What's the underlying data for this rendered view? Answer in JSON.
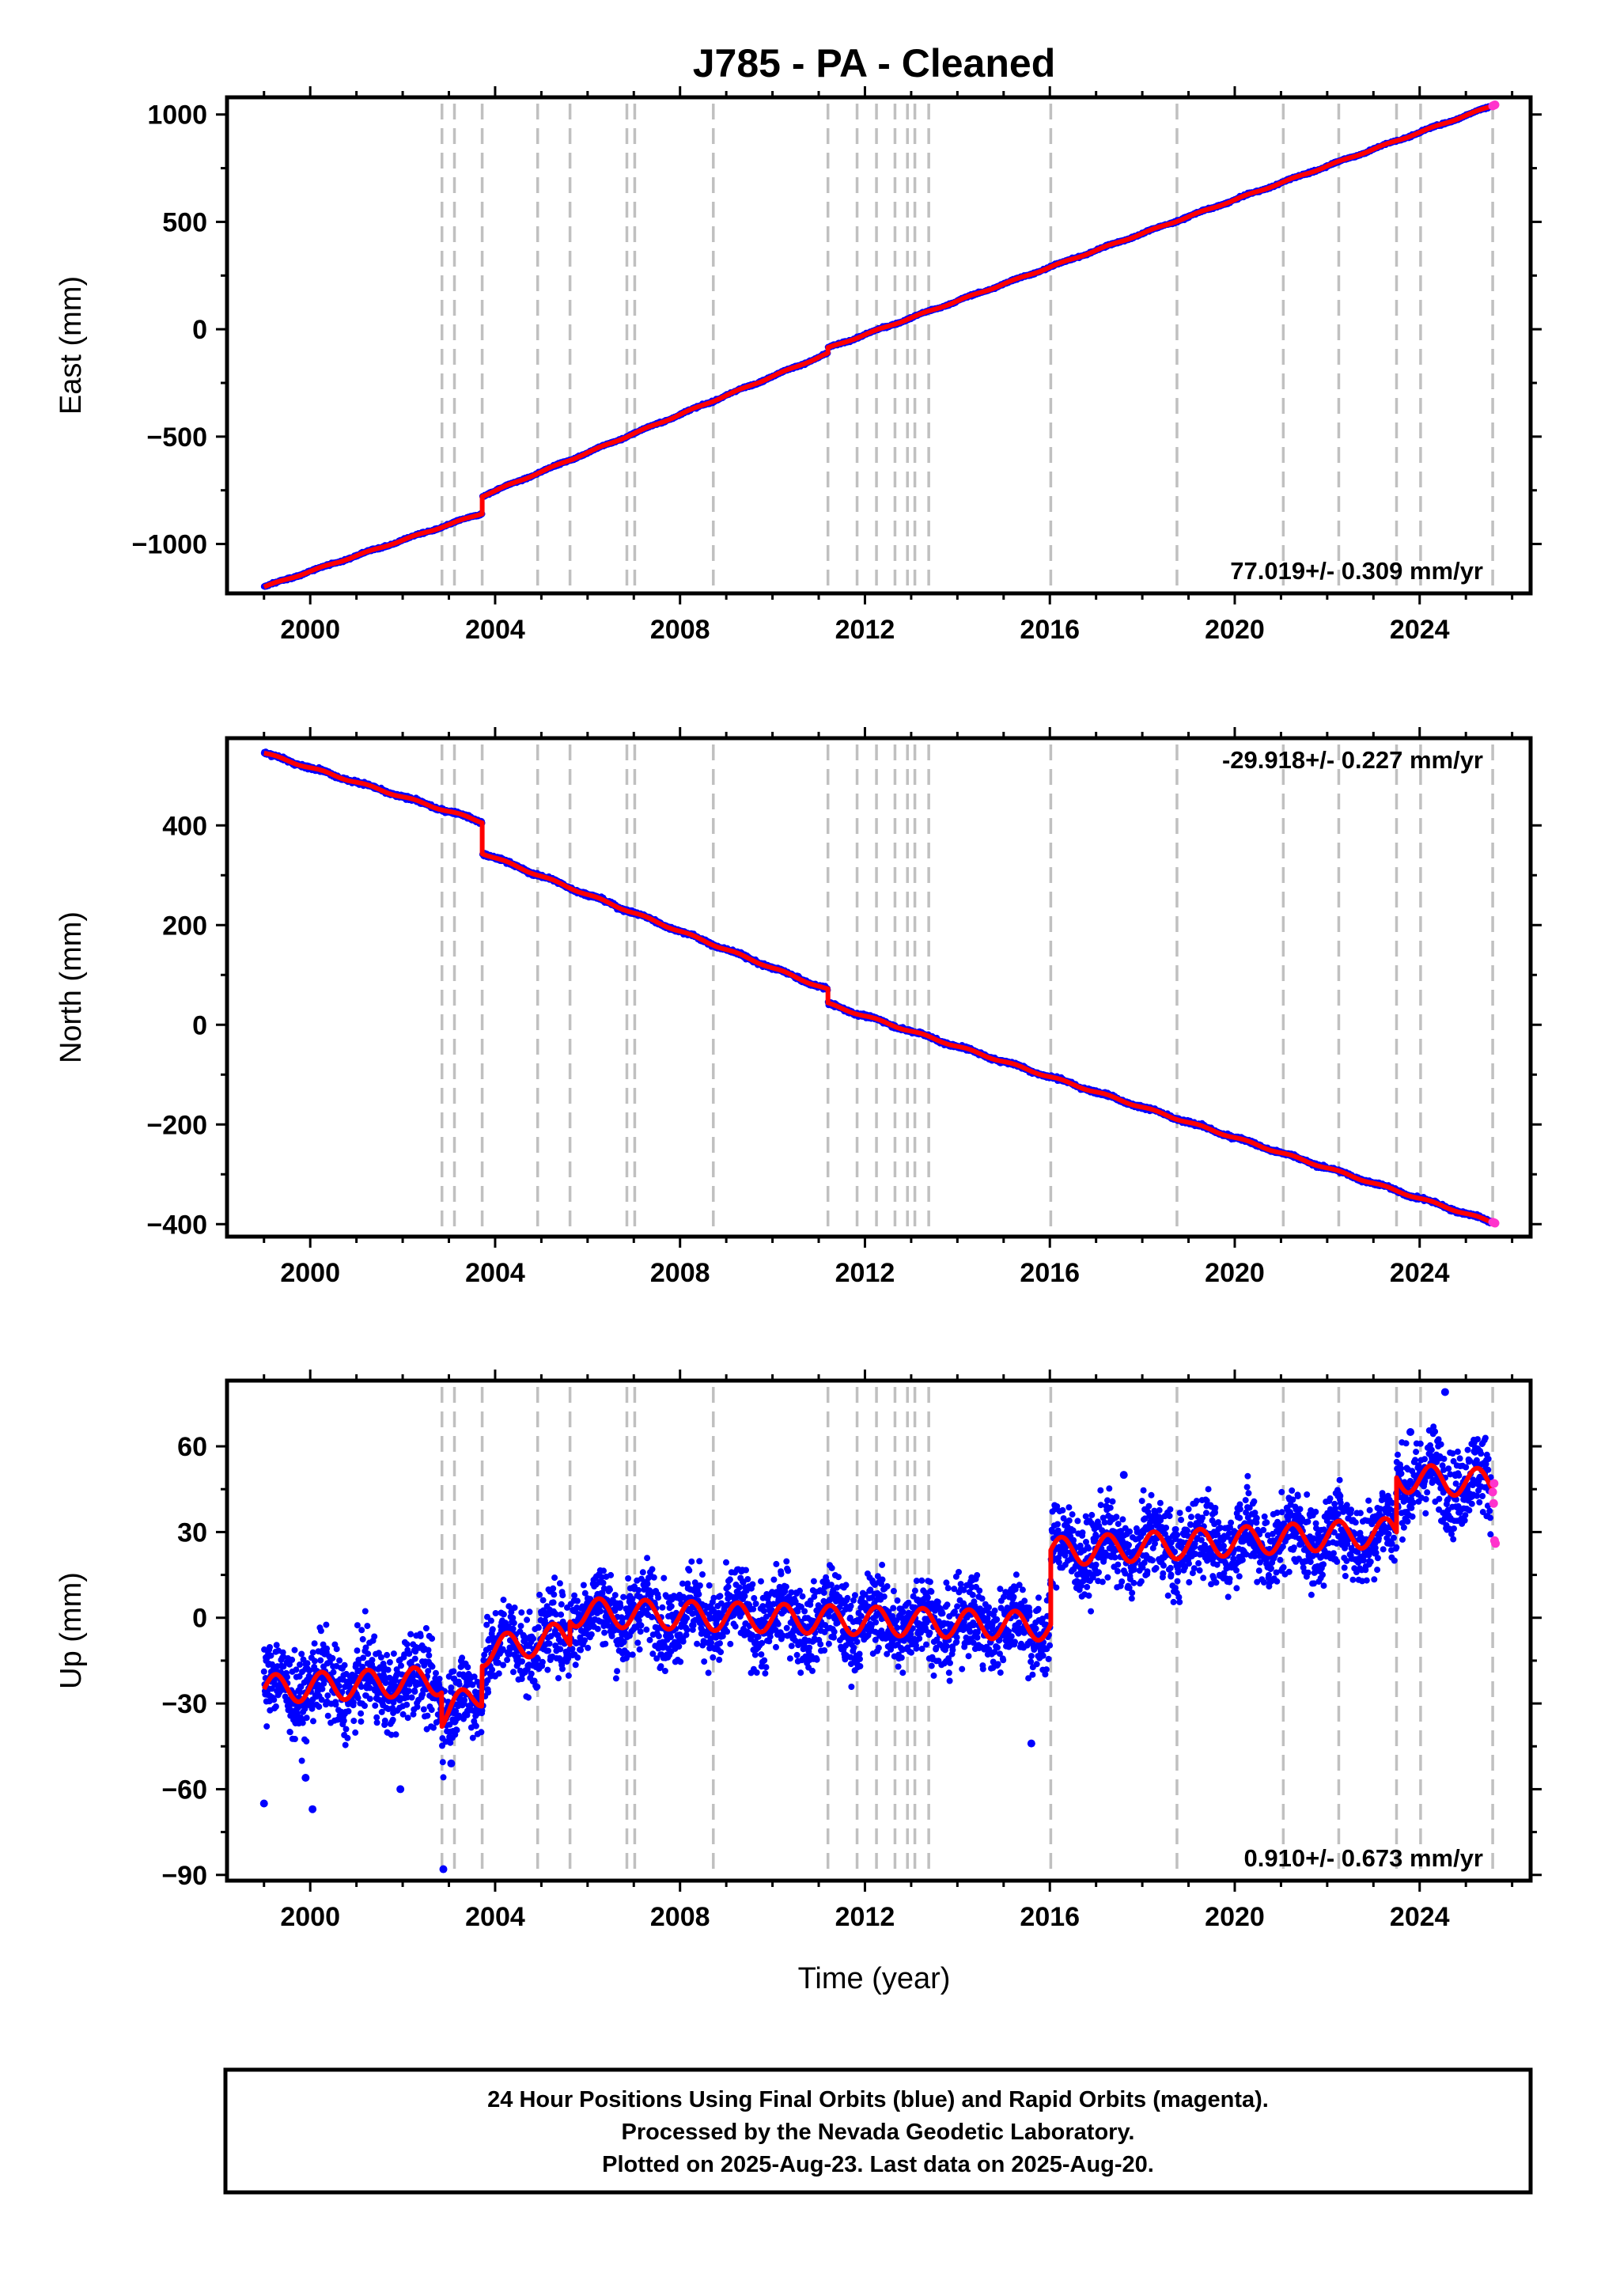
{
  "chart_data": {
    "type": "scatter",
    "title": "J785  - PA - Cleaned",
    "xlabel": "Time (year)",
    "xlim": [
      1998.2,
      2026.4
    ],
    "x_ticks": [
      2000,
      2004,
      2008,
      2012,
      2016,
      2020,
      2024
    ],
    "equipment_changes": [
      2002.85,
      2003.12,
      2003.72,
      2004.92,
      2005.62,
      2006.85,
      2007.02,
      2008.72,
      2011.2,
      2011.83,
      2012.25,
      2012.65,
      2012.92,
      2013.08,
      2013.38,
      2016.02,
      2018.75,
      2021.05,
      2022.25,
      2023.5,
      2024.02,
      2025.58
    ],
    "colors": {
      "final": "#0000ff",
      "rapid": "#ff33cc",
      "model": "#ff0000",
      "event": "#c0c0c0"
    },
    "panels": [
      {
        "name": "east",
        "ylabel": "East (mm)",
        "ylim": [
          -1230,
          1080
        ],
        "y_ticks": [
          1000,
          500,
          0,
          -500,
          -1000
        ],
        "rate_label": "77.019+/- 0.309 mm/yr",
        "rate_position": "bottom-right",
        "rate": 77.019,
        "segments": [
          {
            "start": 1999.0,
            "end": 2003.72,
            "value_start": -1200,
            "value_end": -857
          },
          {
            "start": 2003.72,
            "end": 2011.2,
            "value_start": -777,
            "value_end": -113
          },
          {
            "start": 2011.2,
            "end": 2025.63,
            "value_start": -88,
            "value_end": 1045
          }
        ],
        "seasonal_amplitude": 3,
        "scatter": 4,
        "postseismic": {
          "start": 2003.72,
          "amplitude": 45,
          "tau": 0.45
        },
        "rapid_points": [
          {
            "x": 2025.58,
            "y": 1040
          },
          {
            "x": 2025.61,
            "y": 1043
          },
          {
            "x": 2025.63,
            "y": 1045
          }
        ]
      },
      {
        "name": "north",
        "ylabel": "North (mm)",
        "ylim": [
          -425,
          575
        ],
        "y_ticks": [
          400,
          200,
          0,
          -200,
          -400
        ],
        "rate_label": "-29.918+/- 0.227 mm/yr",
        "rate_position": "top-right",
        "rate": -29.918,
        "segments": [
          {
            "start": 1999.0,
            "end": 2003.72,
            "value_start": 545,
            "value_end": 407
          },
          {
            "start": 2003.72,
            "end": 2011.2,
            "value_start": 345,
            "value_end": 70
          },
          {
            "start": 2011.2,
            "end": 2025.63,
            "value_start": 42,
            "value_end": -398
          }
        ],
        "seasonal_amplitude": 2,
        "scatter": 3,
        "postseismic": {
          "start": 2003.72,
          "amplitude": 32,
          "tau": 0.4
        },
        "rapid_points": [
          {
            "x": 2025.58,
            "y": -396
          },
          {
            "x": 2025.61,
            "y": -397
          },
          {
            "x": 2025.63,
            "y": -398
          }
        ]
      },
      {
        "name": "up",
        "ylabel": "Up (mm)",
        "ylim": [
          -92,
          83
        ],
        "y_ticks": [
          60,
          30,
          0,
          -30,
          -60,
          -90
        ],
        "rate_label": "0.910+/- 0.673 mm/yr",
        "rate_position": "bottom-right",
        "rate": 0.91,
        "segments": [
          {
            "start": 1999.0,
            "end": 2002.85,
            "value_start": -25,
            "value_end": -22
          },
          {
            "start": 2002.85,
            "end": 2003.72,
            "value_start": -34,
            "value_end": -26
          },
          {
            "start": 2003.72,
            "end": 2005.62,
            "value_start": -12,
            "value_end": -6
          },
          {
            "start": 2005.62,
            "end": 2016.02,
            "value_start": 2,
            "value_end": -3
          },
          {
            "start": 2016.02,
            "end": 2023.5,
            "value_start": 23,
            "value_end": 30
          },
          {
            "start": 2023.5,
            "end": 2025.63,
            "value_start": 49,
            "value_end": 47
          }
        ],
        "seasonal_amplitude": 5,
        "scatter": 7,
        "outliers": [
          {
            "x": 1999.0,
            "y": -65
          },
          {
            "x": 2000.05,
            "y": -67
          },
          {
            "x": 2002.88,
            "y": -88
          },
          {
            "x": 2024.55,
            "y": 79
          },
          {
            "x": 1999.9,
            "y": -56
          },
          {
            "x": 2001.95,
            "y": -60
          },
          {
            "x": 2003.05,
            "y": -51
          },
          {
            "x": 2023.8,
            "y": 65
          },
          {
            "x": 2017.6,
            "y": 50
          },
          {
            "x": 2015.6,
            "y": -44
          }
        ],
        "rapid_points": [
          {
            "x": 2025.58,
            "y": 44
          },
          {
            "x": 2025.6,
            "y": 40
          },
          {
            "x": 2025.62,
            "y": 27
          },
          {
            "x": 2025.64,
            "y": 26
          },
          {
            "x": 2025.61,
            "y": 47
          }
        ]
      }
    ],
    "legend_box": {
      "line1": "24 Hour Positions Using Final Orbits (blue) and Rapid Orbits (magenta).",
      "line2": "Processed by the Nevada Geodetic Laboratory.",
      "line3": "Plotted on 2025-Aug-23. Last data on 2025-Aug-20."
    }
  }
}
